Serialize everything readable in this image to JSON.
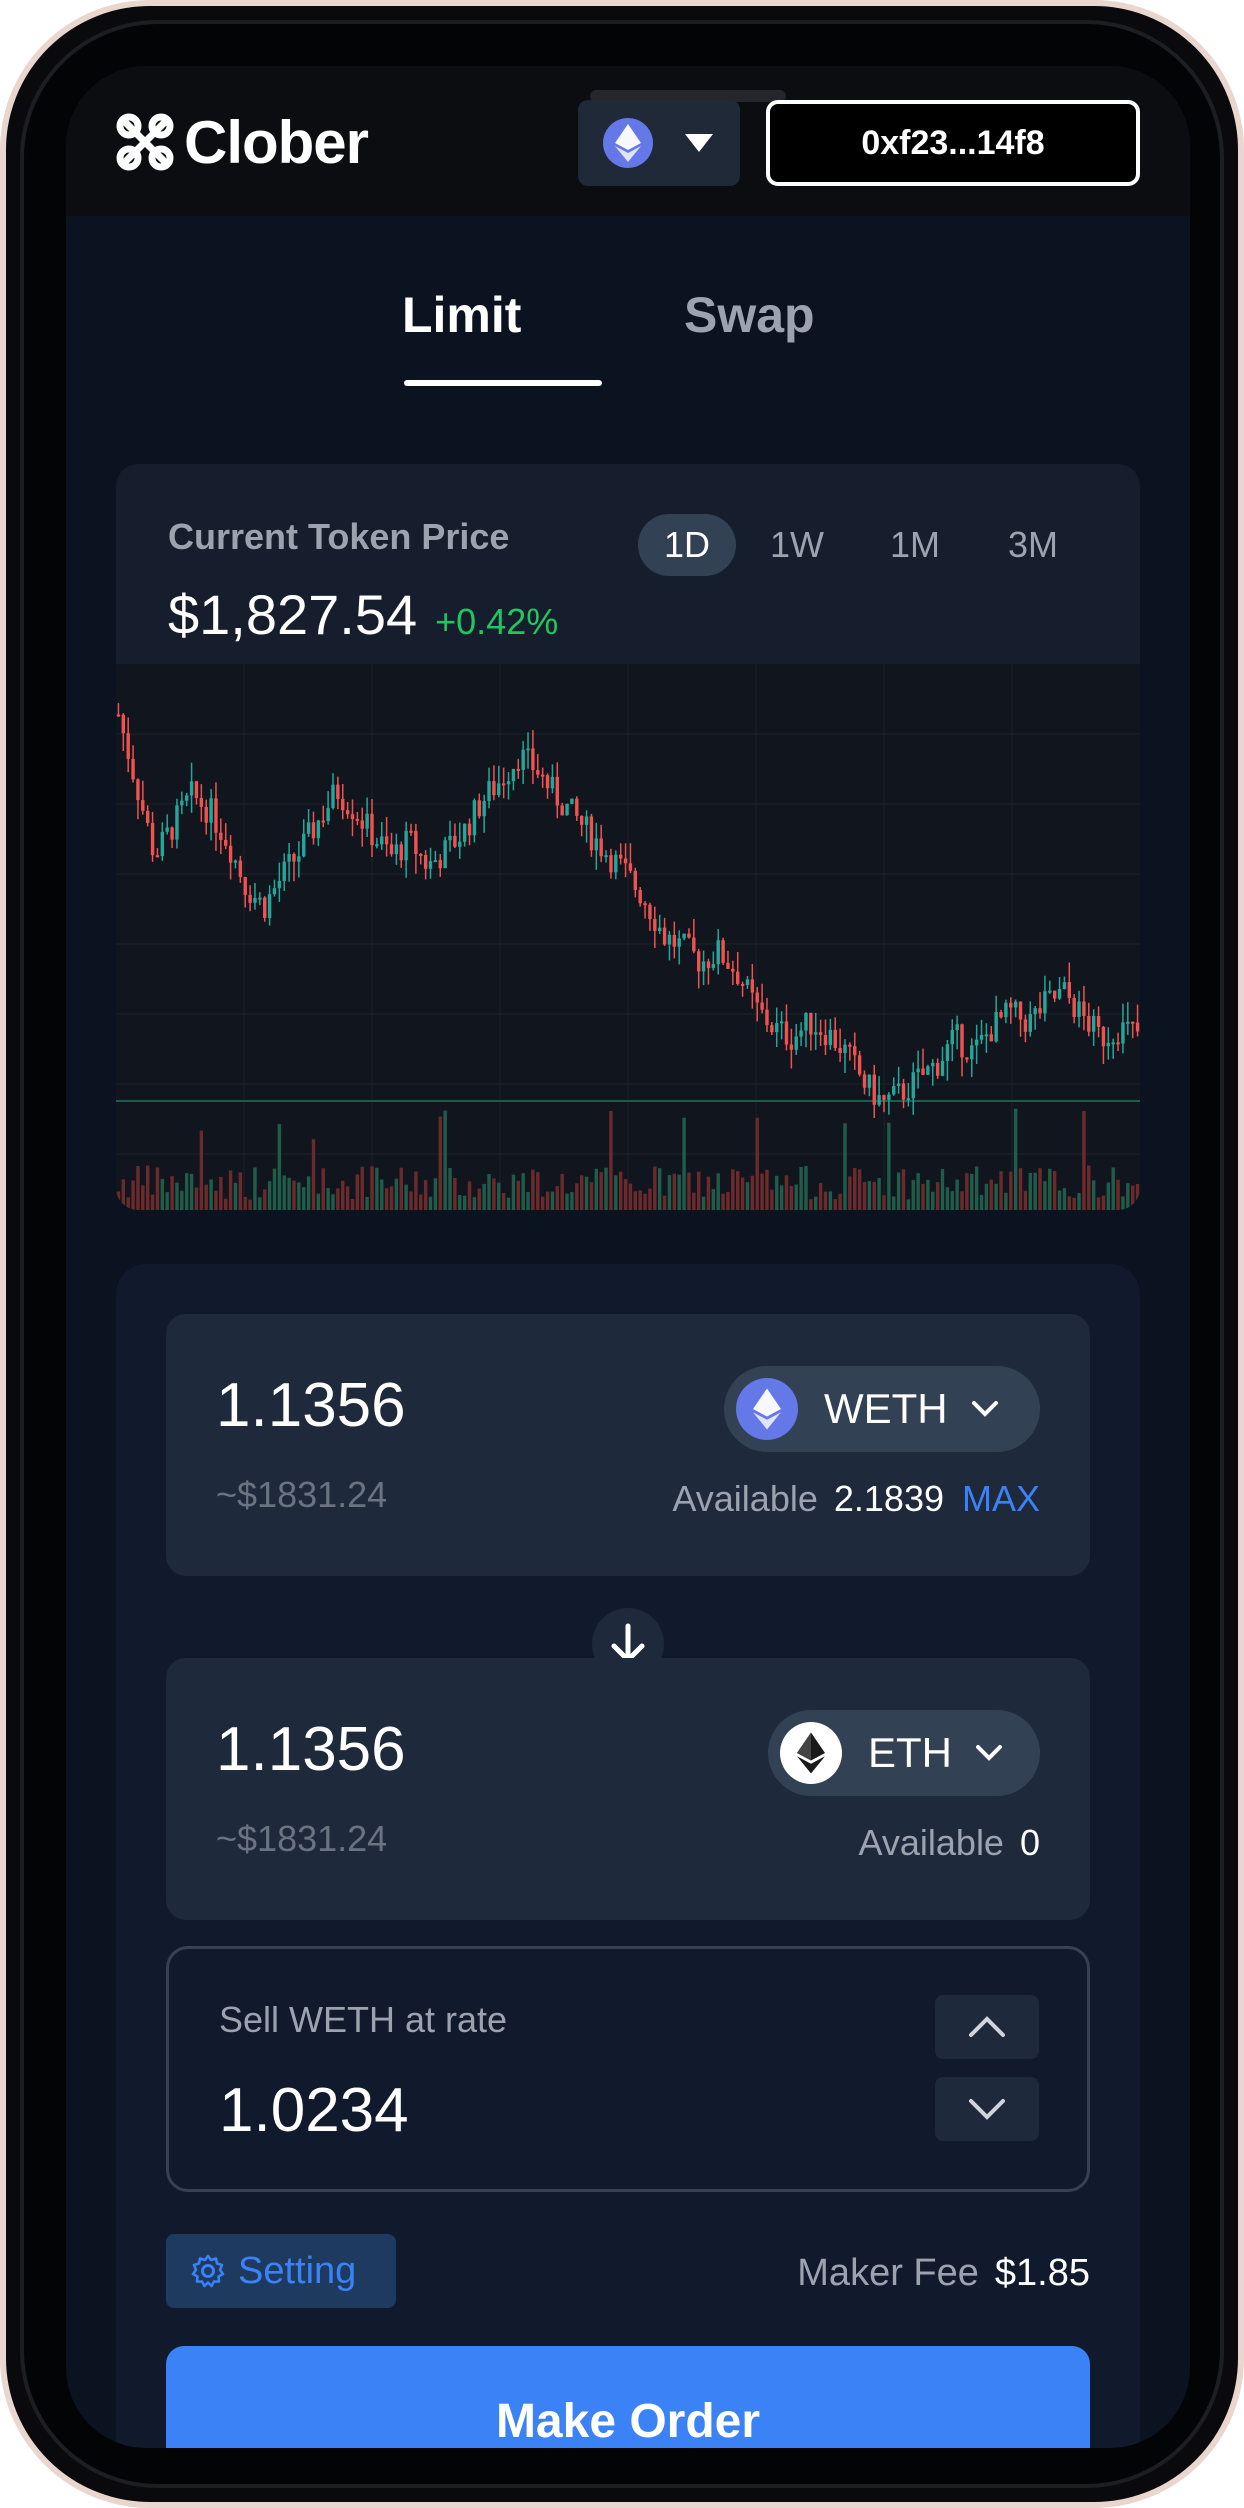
{
  "header": {
    "brand": "Clober",
    "wallet_address": "0xf23...14f8",
    "chain_icon": "ethereum-icon"
  },
  "tabs": [
    {
      "label": "Limit",
      "active": true
    },
    {
      "label": "Swap",
      "active": false
    }
  ],
  "price_panel": {
    "label": "Current Token Price",
    "price": "$1,827.54",
    "change": "+0.42%",
    "change_color": "#22c55e",
    "periods": [
      {
        "label": "1D",
        "active": true
      },
      {
        "label": "1W",
        "active": false
      },
      {
        "label": "1M",
        "active": false
      },
      {
        "label": "3M",
        "active": false
      }
    ]
  },
  "chart_data": {
    "type": "candlestick",
    "series_closes": [
      1870,
      1856,
      1842,
      1848,
      1854,
      1851,
      1845,
      1836,
      1832,
      1838,
      1843,
      1849,
      1855,
      1851,
      1846,
      1842,
      1845,
      1840,
      1843,
      1847,
      1853,
      1857,
      1862,
      1859,
      1854,
      1850,
      1846,
      1842,
      1838,
      1833,
      1826,
      1824,
      1821,
      1823,
      1819,
      1812,
      1808,
      1806,
      1809,
      1807,
      1803,
      1797,
      1793,
      1795,
      1798,
      1801,
      1806,
      1803,
      1808,
      1811,
      1809,
      1813,
      1815,
      1810,
      1806,
      1808,
      1807
    ],
    "up_color": "#26a69a",
    "down_color": "#ef5350",
    "grid": true
  },
  "order": {
    "from": {
      "amount": "1.1356",
      "usd": "~$1831.24",
      "token": "WETH",
      "available_label": "Available",
      "available_value": "2.1839",
      "max_label": "MAX"
    },
    "to": {
      "amount": "1.1356",
      "usd": "~$1831.24",
      "token": "ETH",
      "available_label": "Available",
      "available_value": "0"
    },
    "rate": {
      "label": "Sell WETH at rate",
      "value": "1.0234"
    },
    "setting_label": "Setting",
    "fee_label": "Maker Fee",
    "fee_value": "$1.85",
    "submit_label": "Make Order"
  }
}
